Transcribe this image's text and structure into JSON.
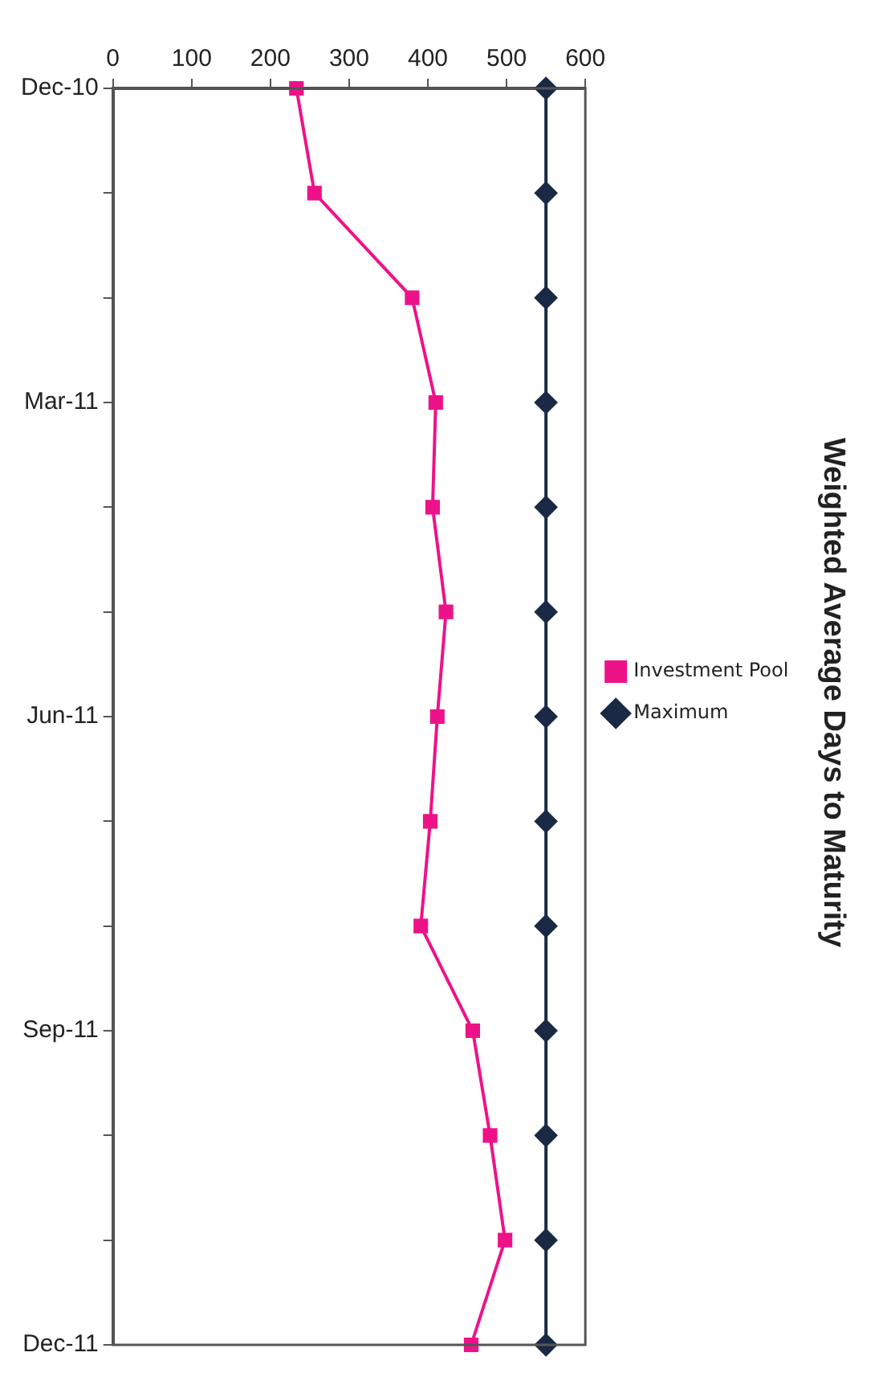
{
  "chart_data": {
    "type": "line",
    "title": "Weighted Average Days to Maturity",
    "categories": [
      "Dec-10",
      null,
      null,
      "Mar-11",
      null,
      null,
      "Jun-11",
      null,
      null,
      "Sep-11",
      null,
      null,
      "Dec-11"
    ],
    "series": [
      {
        "name": "Investment Pool",
        "color": "#ee1289",
        "marker": "square",
        "values": [
          233,
          256,
          380,
          410,
          406,
          423,
          412,
          403,
          391,
          457,
          479,
          498,
          455
        ]
      },
      {
        "name": "Maximum",
        "color": "#1a2a44",
        "marker": "diamond",
        "values": [
          550,
          550,
          550,
          550,
          550,
          550,
          550,
          550,
          550,
          550,
          550,
          550,
          550
        ]
      }
    ],
    "orientation": "horizontal",
    "xlim": [
      0,
      600
    ],
    "xticks": [
      0,
      100,
      200,
      300,
      400,
      500,
      600
    ],
    "grid": false,
    "legend": "right",
    "line_style": "solid"
  }
}
